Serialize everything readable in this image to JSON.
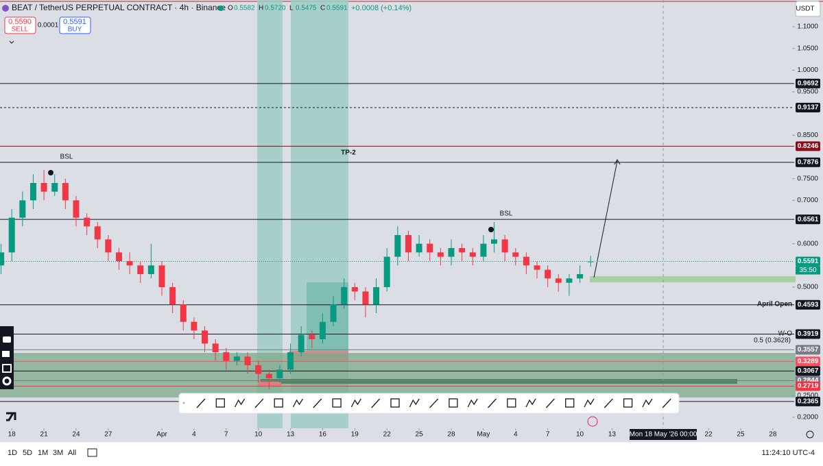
{
  "chart_data": {
    "type": "candlestick",
    "title": "BEAT / TetherUS PERPETUAL CONTRACT · 4h · Binance",
    "x": [
      17,
      18,
      19,
      20,
      21,
      22,
      23,
      24,
      25,
      26,
      27,
      28,
      29,
      30,
      31,
      32,
      33,
      34,
      35,
      36,
      37,
      38,
      39,
      40,
      41,
      42,
      43,
      44,
      45,
      46,
      47,
      48,
      49,
      50,
      51,
      52,
      53,
      54,
      55,
      56,
      57,
      58,
      59,
      60,
      61,
      62,
      63,
      64,
      65,
      66,
      67,
      68,
      69,
      70,
      71,
      72
    ],
    "open": [
      0.55,
      0.58,
      0.66,
      0.7,
      0.74,
      0.72,
      0.74,
      0.7,
      0.66,
      0.64,
      0.61,
      0.58,
      0.56,
      0.55,
      0.53,
      0.55,
      0.5,
      0.46,
      0.42,
      0.4,
      0.37,
      0.35,
      0.33,
      0.34,
      0.32,
      0.3,
      0.29,
      0.31,
      0.35,
      0.39,
      0.38,
      0.42,
      0.46,
      0.5,
      0.49,
      0.46,
      0.5,
      0.57,
      0.62,
      0.58,
      0.6,
      0.58,
      0.57,
      0.59,
      0.58,
      0.57,
      0.6,
      0.61,
      0.58,
      0.57,
      0.55,
      0.54,
      0.52,
      0.51,
      0.52,
      0.5582
    ],
    "high": [
      0.6,
      0.68,
      0.72,
      0.76,
      0.77,
      0.76,
      0.75,
      0.71,
      0.67,
      0.65,
      0.62,
      0.59,
      0.58,
      0.56,
      0.6,
      0.56,
      0.51,
      0.47,
      0.43,
      0.41,
      0.38,
      0.36,
      0.35,
      0.35,
      0.33,
      0.31,
      0.32,
      0.37,
      0.41,
      0.4,
      0.44,
      0.48,
      0.52,
      0.51,
      0.5,
      0.52,
      0.59,
      0.64,
      0.63,
      0.62,
      0.61,
      0.59,
      0.61,
      0.6,
      0.59,
      0.62,
      0.65,
      0.62,
      0.59,
      0.58,
      0.56,
      0.55,
      0.53,
      0.53,
      0.55,
      0.572
    ],
    "low": [
      0.53,
      0.56,
      0.64,
      0.68,
      0.7,
      0.71,
      0.68,
      0.64,
      0.62,
      0.59,
      0.56,
      0.54,
      0.53,
      0.51,
      0.52,
      0.48,
      0.44,
      0.4,
      0.38,
      0.35,
      0.33,
      0.31,
      0.32,
      0.3,
      0.28,
      0.265,
      0.28,
      0.3,
      0.34,
      0.36,
      0.37,
      0.41,
      0.45,
      0.47,
      0.43,
      0.44,
      0.49,
      0.55,
      0.56,
      0.57,
      0.56,
      0.55,
      0.55,
      0.56,
      0.55,
      0.56,
      0.58,
      0.56,
      0.55,
      0.53,
      0.52,
      0.5,
      0.49,
      0.48,
      0.51,
      0.5475
    ],
    "close": [
      0.58,
      0.66,
      0.7,
      0.74,
      0.72,
      0.74,
      0.7,
      0.66,
      0.64,
      0.61,
      0.58,
      0.56,
      0.55,
      0.53,
      0.55,
      0.5,
      0.46,
      0.42,
      0.4,
      0.37,
      0.35,
      0.33,
      0.34,
      0.32,
      0.3,
      0.29,
      0.31,
      0.35,
      0.39,
      0.38,
      0.42,
      0.46,
      0.5,
      0.49,
      0.46,
      0.5,
      0.57,
      0.62,
      0.58,
      0.6,
      0.58,
      0.57,
      0.59,
      0.58,
      0.57,
      0.6,
      0.61,
      0.58,
      0.57,
      0.55,
      0.54,
      0.52,
      0.51,
      0.52,
      0.53,
      0.5591
    ],
    "up_color": "#089981",
    "down_color": "#f23645",
    "xlim": [
      16.9,
      90.8
    ],
    "xticks": [
      {
        "value": 18,
        "label": "18"
      },
      {
        "value": 21,
        "label": "21"
      },
      {
        "value": 24,
        "label": "24"
      },
      {
        "value": 27,
        "label": "27"
      },
      {
        "value": 32,
        "label": "Apr"
      },
      {
        "value": 35,
        "label": "4"
      },
      {
        "value": 38,
        "label": "7"
      },
      {
        "value": 41,
        "label": "10"
      },
      {
        "value": 44,
        "label": "13"
      },
      {
        "value": 47,
        "label": "16"
      },
      {
        "value": 50,
        "label": "19"
      },
      {
        "value": 53,
        "label": "22"
      },
      {
        "value": 56,
        "label": "25"
      },
      {
        "value": 59,
        "label": "28"
      },
      {
        "value": 62,
        "label": "May"
      },
      {
        "value": 65,
        "label": "4"
      },
      {
        "value": 68,
        "label": "7"
      },
      {
        "value": 71,
        "label": "10"
      },
      {
        "value": 74,
        "label": "13"
      },
      {
        "value": 83,
        "label": "22"
      },
      {
        "value": 86,
        "label": "25"
      },
      {
        "value": 89,
        "label": "28"
      }
    ],
    "ylim": [
      0.1747,
      1.1616
    ],
    "yticks": [
      {
        "value": 1.1,
        "label": "1.1000"
      },
      {
        "value": 1.05,
        "label": "1.0500"
      },
      {
        "value": 1.0,
        "label": "1.0000"
      },
      {
        "value": 0.95,
        "label": "0.9500"
      },
      {
        "value": 0.85,
        "label": "0.8500"
      },
      {
        "value": 0.75,
        "label": "0.7500"
      },
      {
        "value": 0.7,
        "label": "0.7000"
      },
      {
        "value": 0.6,
        "label": "0.6000"
      },
      {
        "value": 0.5,
        "label": "0.5000"
      },
      {
        "value": 0.25,
        "label": "0.2500"
      },
      {
        "value": 0.2,
        "label": "0.2000"
      }
    ],
    "levels": [
      {
        "value": 0.9692,
        "color": "#131722"
      },
      {
        "value": 0.9137,
        "color": "#131722"
      },
      {
        "value": 0.8246,
        "color": "#880e19"
      },
      {
        "value": 0.7876,
        "color": "#131722"
      },
      {
        "value": 0.6561,
        "color": "#131722"
      },
      {
        "value": 0.5591,
        "color": "#089981"
      },
      {
        "value": 0.4593,
        "color": "#131722"
      },
      {
        "value": 0.3919,
        "color": "#131722"
      },
      {
        "value": 0.3557,
        "color": "#787b86"
      },
      {
        "value": 0.3289,
        "color": "#f7525f"
      },
      {
        "value": 0.3067,
        "color": "#131722"
      },
      {
        "value": 0.2844,
        "color": "#787b86"
      },
      {
        "value": 0.2719,
        "color": "#f23645"
      },
      {
        "value": 0.2365,
        "color": "#131722"
      }
    ],
    "annotations": [
      "BSL",
      "BSL",
      "TP-2",
      "April Open",
      "W-O",
      "0.5 (0.3628)"
    ],
    "countdown": "35:50",
    "crosshair_date": "Mon 18 May '26 00:00"
  },
  "ui": {
    "ohlc": [
      {
        "k": "O",
        "v": "0.5582"
      },
      {
        "k": "H",
        "v": "0.5720"
      },
      {
        "k": "L",
        "v": "0.5475"
      },
      {
        "k": "C",
        "v": "0.5591"
      }
    ],
    "change": "+0.0008 (+0.14%)",
    "sell": {
      "price": "0.5590",
      "label": "SELL"
    },
    "spread": "0.0001",
    "buy": {
      "price": "0.5591",
      "label": "BUY"
    },
    "currency": "USDT",
    "ranges": [
      "1D",
      "5D",
      "1M",
      "3M",
      "All"
    ],
    "clock": "11:24:10 UTC-4"
  }
}
